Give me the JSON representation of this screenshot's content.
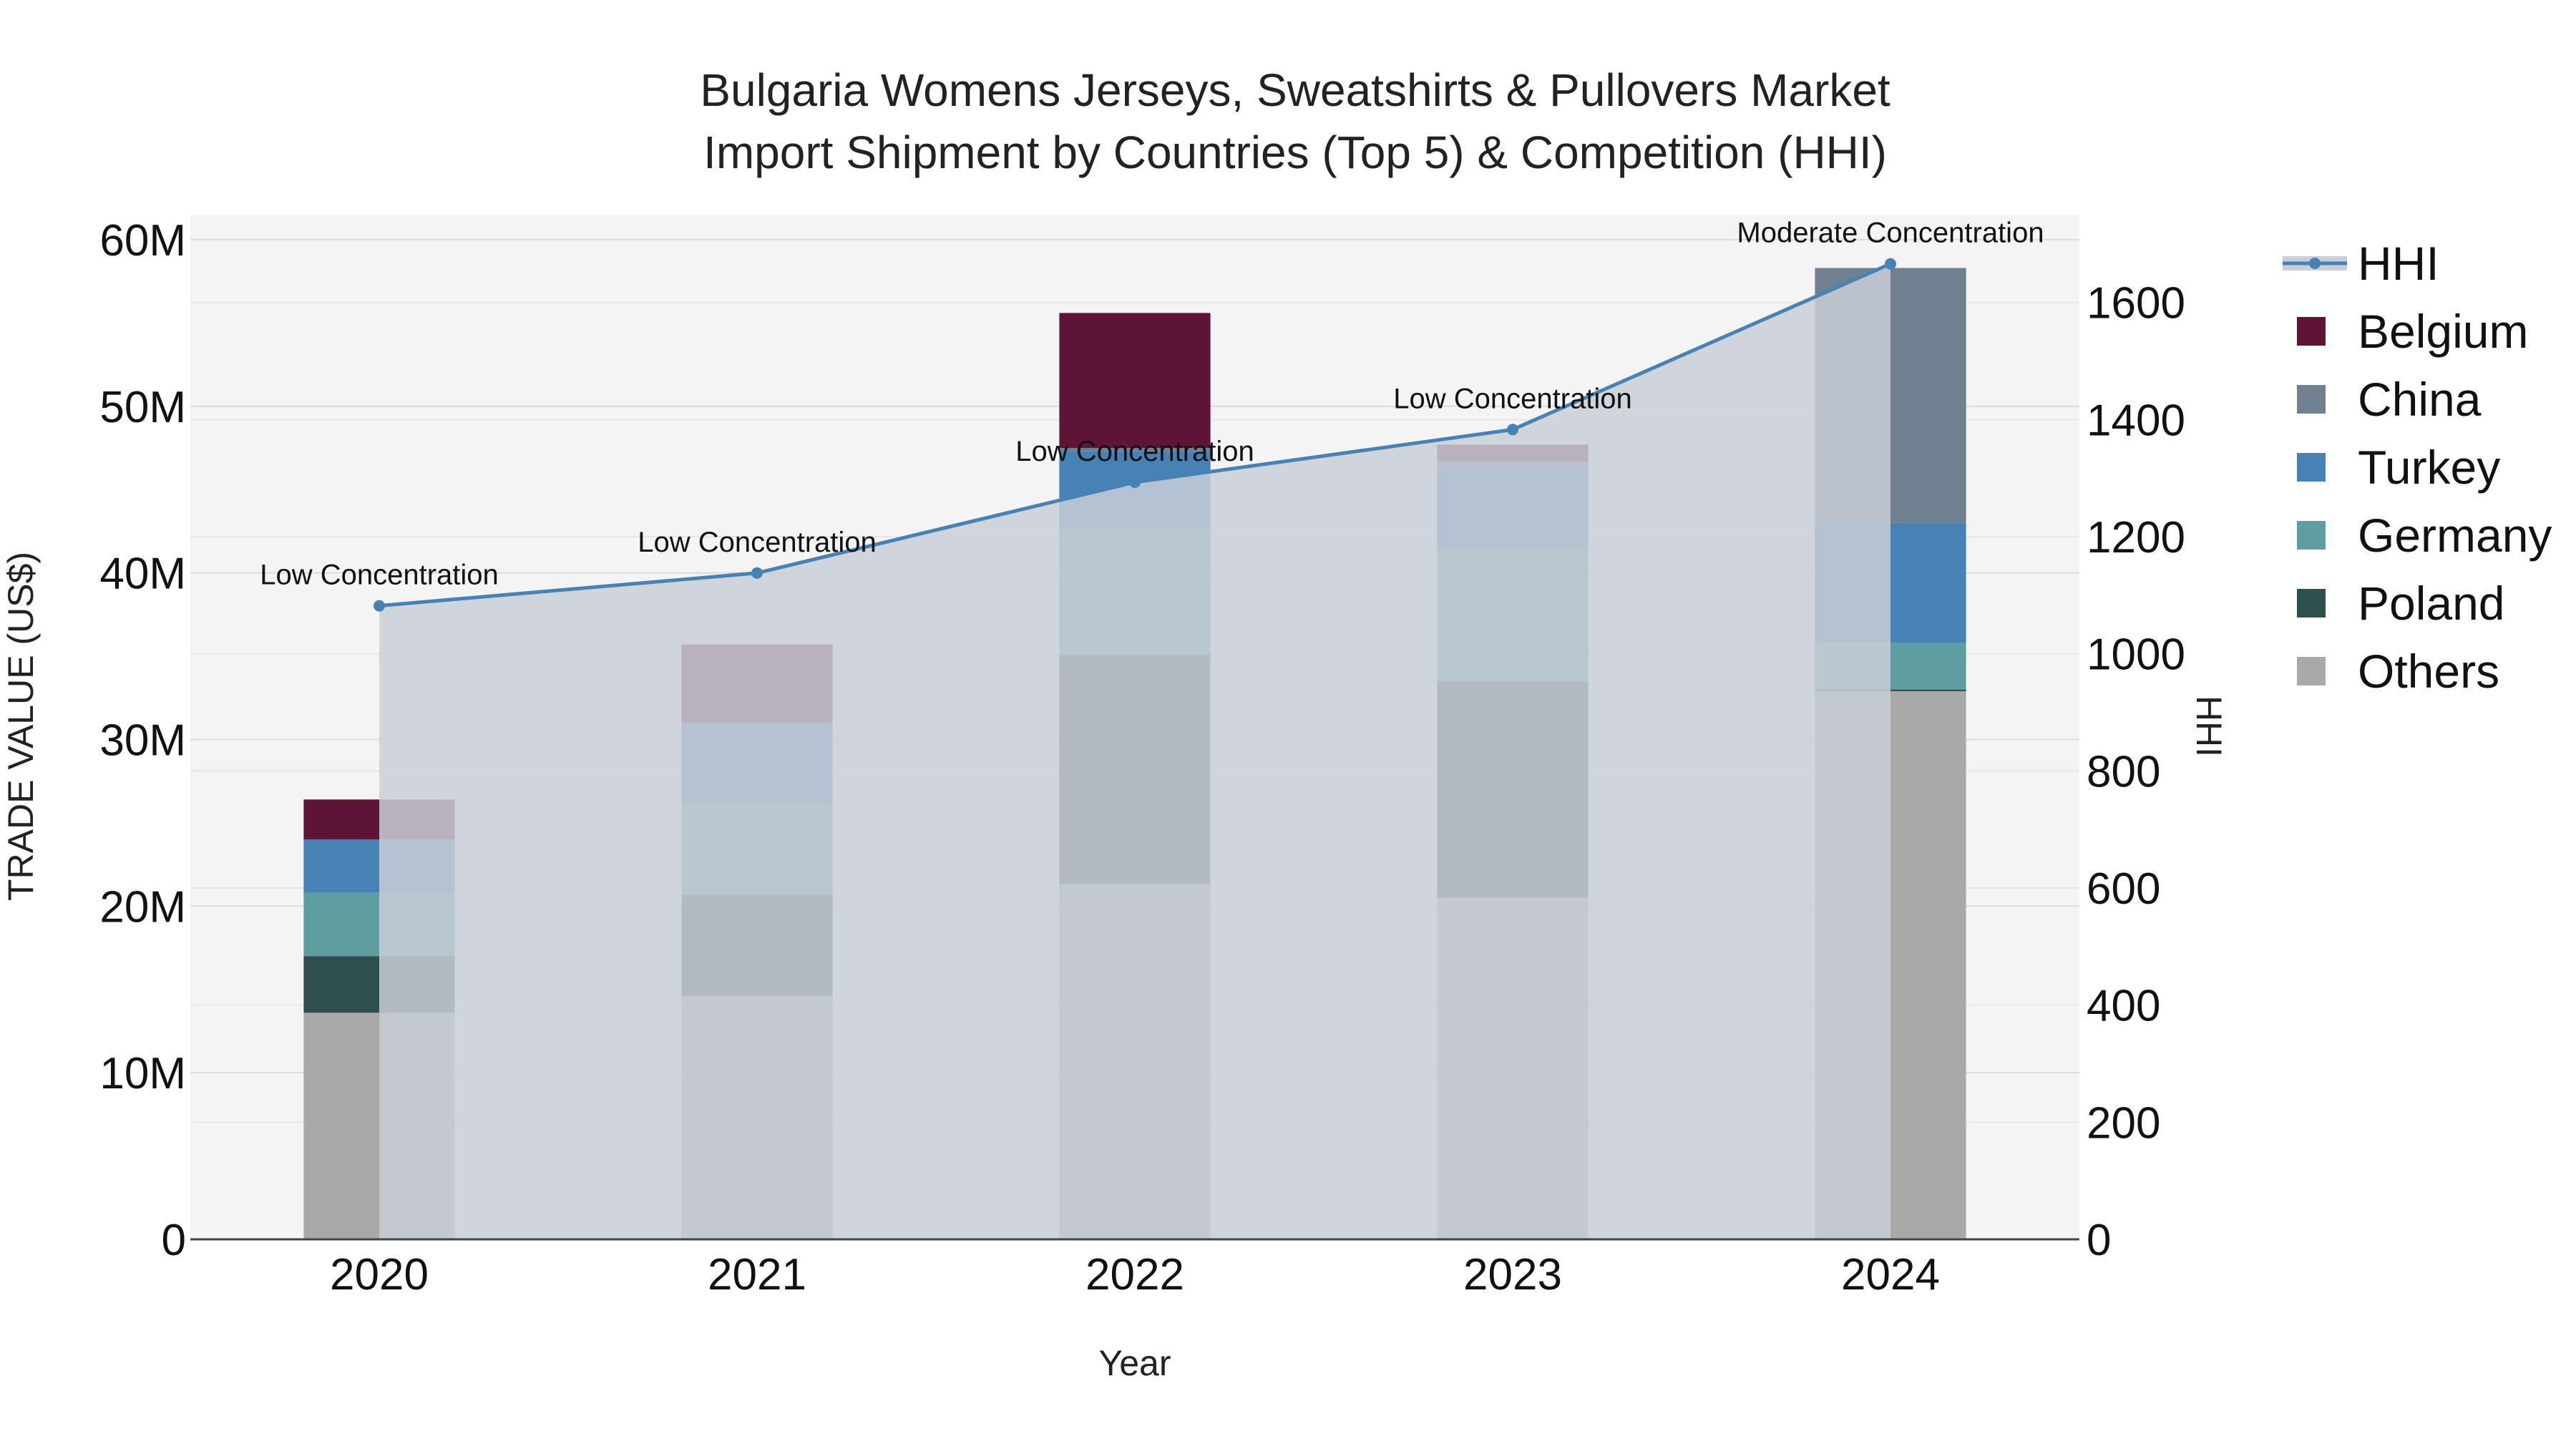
{
  "chart_data": {
    "type": "bar",
    "title_line1": "Bulgaria Womens Jerseys, Sweatshirts & Pullovers Market",
    "title_line2": "Import Shipment by Countries (Top 5) & Competition (HHI)",
    "xlabel": "Year",
    "ylabel": "TRADE VALUE (US$)",
    "y2label": "HHI",
    "categories": [
      "2020",
      "2021",
      "2022",
      "2023",
      "2024"
    ],
    "ylim": [
      0,
      61500000
    ],
    "y_ticks": [
      0,
      10000000,
      20000000,
      30000000,
      40000000,
      50000000,
      60000000
    ],
    "y_tick_labels": [
      "0",
      "10M",
      "20M",
      "30M",
      "40M",
      "50M",
      "60M"
    ],
    "y2lim": [
      0,
      1750
    ],
    "y2_ticks": [
      0,
      200,
      400,
      600,
      800,
      1000,
      1200,
      1400,
      1600
    ],
    "y2_tick_labels": [
      "0",
      "200",
      "400",
      "600",
      "800",
      "1000",
      "1200",
      "1400",
      "1600"
    ],
    "series": [
      {
        "name": "Others",
        "color": "#a9a9a9",
        "values": [
          13600000,
          14600000,
          21300000,
          20500000,
          32900000
        ]
      },
      {
        "name": "Poland",
        "color": "#2f4f4f",
        "values": [
          3400000,
          6100000,
          13800000,
          13000000,
          100000
        ]
      },
      {
        "name": "Germany",
        "color": "#5f9ea0",
        "values": [
          3800000,
          5500000,
          7600000,
          8000000,
          2800000
        ]
      },
      {
        "name": "Turkey",
        "color": "#4682b4",
        "values": [
          3200000,
          4800000,
          4600000,
          4800000,
          7200000
        ]
      },
      {
        "name": "China",
        "color": "#708090",
        "values": [
          0,
          0,
          200000,
          400000,
          15300000
        ]
      },
      {
        "name": "Belgium",
        "color": "#5e1434",
        "values": [
          2400000,
          4700000,
          8100000,
          1000000,
          0
        ]
      }
    ],
    "legend": [
      "HHI",
      "Belgium",
      "China",
      "Turkey",
      "Germany",
      "Poland",
      "Others"
    ],
    "hhi": {
      "name": "HHI",
      "color": "#4682b4",
      "area_color": "#c9ced6",
      "values": [
        1082,
        1138,
        1293,
        1383,
        1666
      ],
      "annotations": [
        "Low Concentration",
        "Low Concentration",
        "Low Concentration",
        "Low Concentration",
        "Moderate Concentration"
      ]
    }
  }
}
